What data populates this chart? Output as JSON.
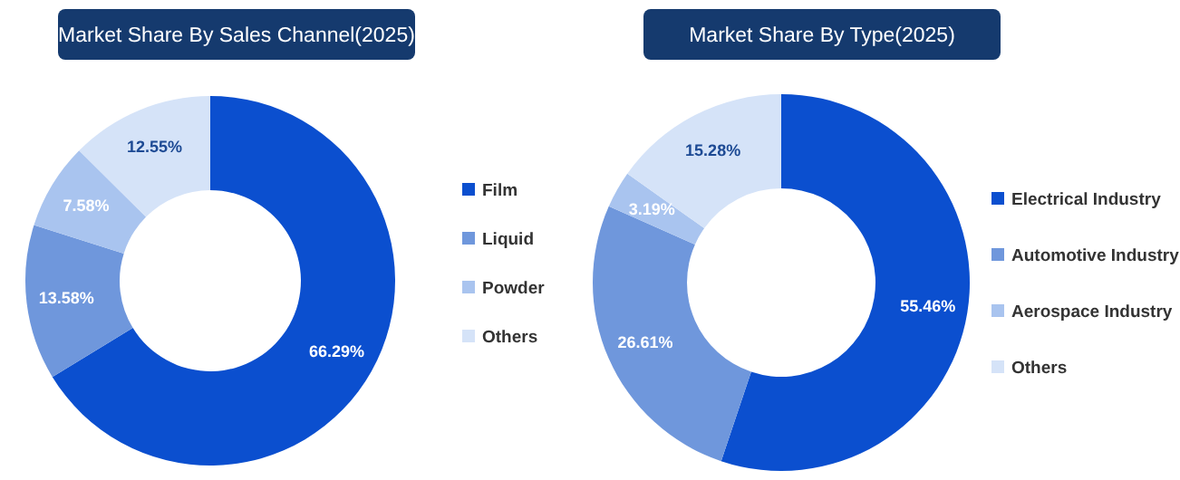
{
  "chart_data": [
    {
      "type": "donut",
      "title": "Market Share By Sales Channel(2025)",
      "categories": [
        "Film",
        "Liquid",
        "Powder",
        "Others"
      ],
      "values": [
        66.29,
        13.58,
        7.58,
        12.55
      ],
      "value_labels": [
        "66.29%",
        "13.58%",
        "7.58%",
        "12.55%"
      ],
      "colors": [
        "#0b4fcf",
        "#6f97dc",
        "#a9c4ef",
        "#d5e3f8"
      ],
      "legend": "right"
    },
    {
      "type": "donut",
      "title": "Market Share By Type(2025)",
      "categories": [
        "Electrical Industry",
        "Automotive Industry",
        "Aerospace Industry",
        "Others"
      ],
      "values": [
        55.46,
        26.61,
        3.19,
        15.28
      ],
      "value_labels": [
        "55.46%",
        "26.61%",
        "3.19%",
        "15.28%"
      ],
      "colors": [
        "#0b4fcf",
        "#6f97dc",
        "#a9c4ef",
        "#d5e3f8"
      ],
      "legend": "right"
    }
  ]
}
